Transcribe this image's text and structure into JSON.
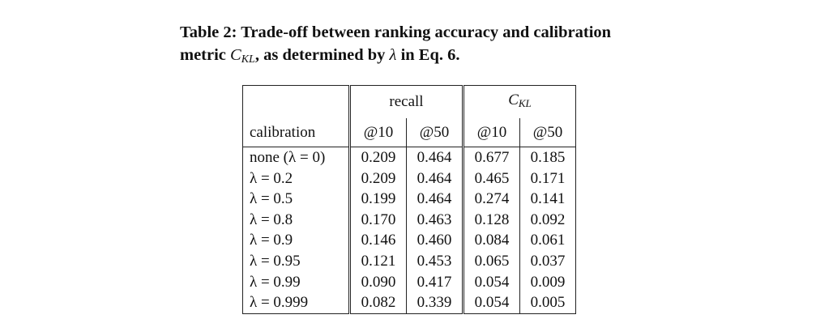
{
  "caption": {
    "line1": "Table 2: Trade-off between ranking accuracy and calibration",
    "line2_prefix": "metric ",
    "line2_math_base": "C",
    "line2_math_sub": "KL",
    "line2_mid": ", as determined by ",
    "line2_lambda": "λ",
    "line2_suffix": " in Eq. 6."
  },
  "table": {
    "group_recall": "recall",
    "group_ckl_base": "C",
    "group_ckl_sub": "KL",
    "col_label": "calibration",
    "subcols": [
      "@10",
      "@50",
      "@10",
      "@50"
    ],
    "rows": [
      {
        "label": "none (λ = 0)",
        "recall10": "0.209",
        "recall50": "0.464",
        "ckl10": "0.677",
        "ckl50": "0.185"
      },
      {
        "label": "λ = 0.2",
        "recall10": "0.209",
        "recall50": "0.464",
        "ckl10": "0.465",
        "ckl50": "0.171"
      },
      {
        "label": "λ = 0.5",
        "recall10": "0.199",
        "recall50": "0.464",
        "ckl10": "0.274",
        "ckl50": "0.141"
      },
      {
        "label": "λ = 0.8",
        "recall10": "0.170",
        "recall50": "0.463",
        "ckl10": "0.128",
        "ckl50": "0.092"
      },
      {
        "label": "λ = 0.9",
        "recall10": "0.146",
        "recall50": "0.460",
        "ckl10": "0.084",
        "ckl50": "0.061"
      },
      {
        "label": "λ = 0.95",
        "recall10": "0.121",
        "recall50": "0.453",
        "ckl10": "0.065",
        "ckl50": "0.037"
      },
      {
        "label": "λ = 0.99",
        "recall10": "0.090",
        "recall50": "0.417",
        "ckl10": "0.054",
        "ckl50": "0.009"
      },
      {
        "label": "λ = 0.999",
        "recall10": "0.082",
        "recall50": "0.339",
        "ckl10": "0.054",
        "ckl50": "0.005"
      }
    ]
  }
}
